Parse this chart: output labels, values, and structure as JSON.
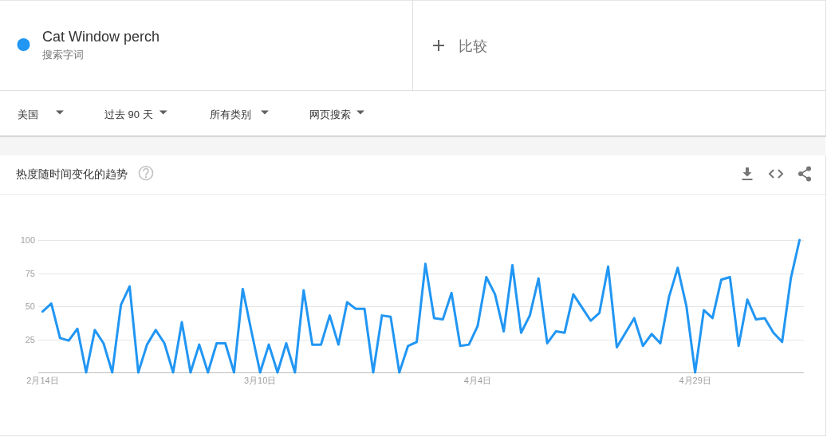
{
  "chart_data": {
    "type": "line",
    "title": "热度随时间变化的趋势",
    "annotations": [
      "搜索字词",
      "比较",
      "美国",
      "过去 90 天",
      "所有类别",
      "网页搜索"
    ],
    "categories": [
      "2月14日",
      null,
      null,
      null,
      null,
      null,
      null,
      null,
      null,
      null,
      null,
      null,
      null,
      null,
      null,
      null,
      null,
      null,
      null,
      null,
      null,
      null,
      null,
      null,
      null,
      "3月10日",
      null,
      null,
      null,
      null,
      null,
      null,
      null,
      null,
      null,
      null,
      null,
      null,
      null,
      null,
      null,
      null,
      null,
      null,
      null,
      null,
      null,
      null,
      null,
      null,
      "4月4日",
      null,
      null,
      null,
      null,
      null,
      null,
      null,
      null,
      null,
      null,
      null,
      null,
      null,
      null,
      null,
      null,
      null,
      null,
      null,
      null,
      null,
      null,
      null,
      null,
      "4月29日",
      null,
      null,
      null,
      null,
      null,
      null,
      null,
      null,
      null,
      null,
      null,
      null
    ],
    "series": [
      {
        "name": "Cat Window perch",
        "color": "#2196f3",
        "values": [
          46,
          52,
          26,
          24,
          33,
          0,
          32,
          22,
          0,
          51,
          65,
          0,
          21,
          32,
          22,
          0,
          38,
          0,
          21,
          0,
          22,
          22,
          0,
          63,
          31,
          0,
          21,
          0,
          22,
          0,
          62,
          21,
          21,
          43,
          21,
          53,
          48,
          48,
          0,
          43,
          42,
          0,
          20,
          23,
          82,
          41,
          40,
          60,
          20,
          21,
          35,
          72,
          59,
          31,
          81,
          30,
          43,
          71,
          22,
          31,
          30,
          59,
          49,
          39,
          45,
          80,
          19,
          30,
          41,
          20,
          29,
          22,
          57,
          79,
          50,
          0,
          47,
          41,
          70,
          72,
          20,
          55,
          40,
          41,
          30,
          23,
          71,
          100
        ]
      }
    ],
    "ylim": [
      0,
      100
    ],
    "yticks": [
      25,
      50,
      75,
      100
    ],
    "grid": "y",
    "legend": "top left",
    "line_style": "solid"
  }
}
